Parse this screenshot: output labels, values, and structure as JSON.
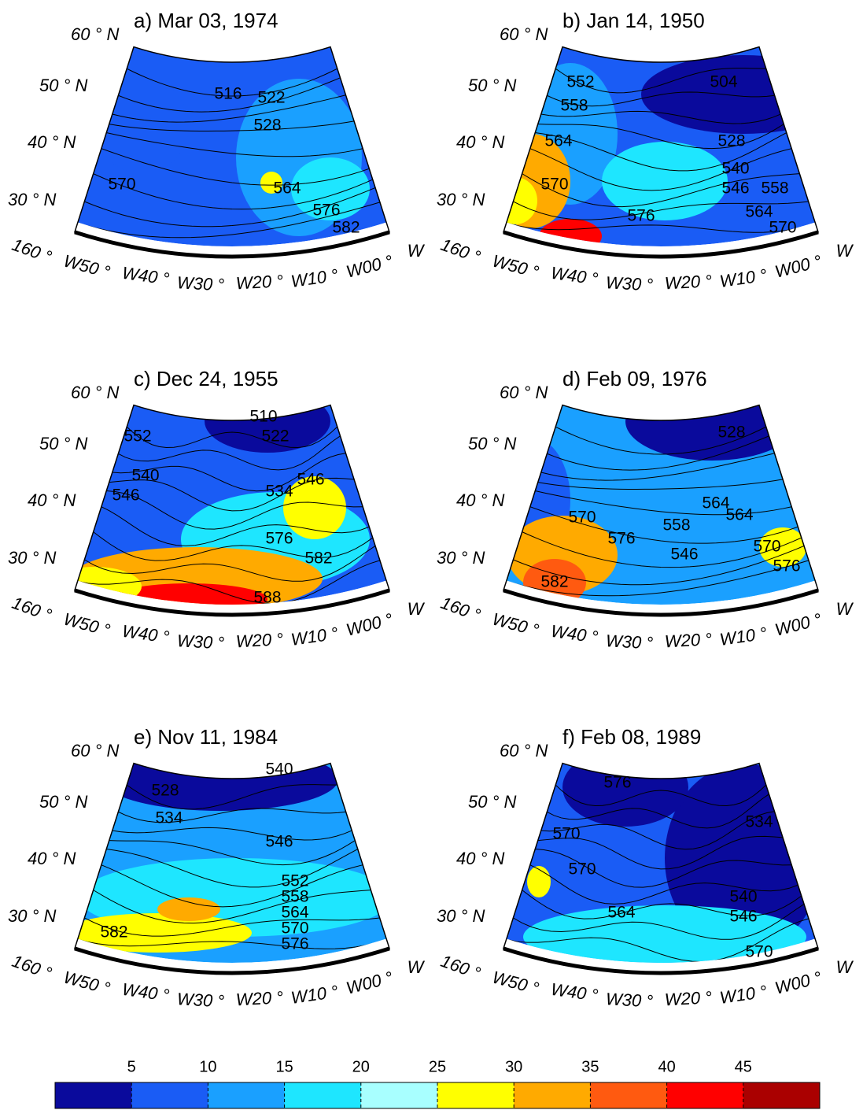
{
  "panels": [
    {
      "title": "a) Mar 03, 1974",
      "contour_labels": [
        "570",
        "516",
        "522",
        "528",
        "564",
        "576",
        "582"
      ]
    },
    {
      "title": "b) Jan 14, 1950",
      "contour_labels": [
        "552",
        "558",
        "564",
        "570",
        "576",
        "504",
        "528",
        "540",
        "546",
        "558",
        "564",
        "570"
      ]
    },
    {
      "title": "c) Dec 24, 1955",
      "contour_labels": [
        "552",
        "546",
        "540",
        "510",
        "522",
        "534",
        "546",
        "576",
        "582",
        "588"
      ]
    },
    {
      "title": "d) Feb 09, 1976",
      "contour_labels": [
        "570",
        "576",
        "582",
        "528",
        "558",
        "546",
        "564",
        "564",
        "570",
        "576"
      ]
    },
    {
      "title": "e) Nov 11, 1984",
      "contour_labels": [
        "528",
        "534",
        "540",
        "546",
        "552",
        "558",
        "564",
        "570",
        "576",
        "582"
      ]
    },
    {
      "title": "f) Feb 08, 1989",
      "contour_labels": [
        "576",
        "570",
        "570",
        "564",
        "534",
        "540",
        "546",
        "570"
      ]
    }
  ],
  "lat_labels": [
    "60 ° N",
    "50 ° N",
    "40 ° N",
    "30 ° N"
  ],
  "lon_labels": [
    "160 °",
    "W50 °",
    "W40 °",
    "W30 °",
    "W20 °",
    "W10 °",
    "W00 °",
    "W"
  ],
  "colorbar": {
    "ticks": [
      5,
      10,
      15,
      20,
      25,
      30,
      35,
      40,
      45
    ],
    "colors": [
      "#0a0a9c",
      "#1a5cf5",
      "#1aa0ff",
      "#1ee6ff",
      "#a8ffff",
      "#ffff00",
      "#ffaa00",
      "#ff5a10",
      "#ff0000",
      "#aa0000"
    ]
  }
}
